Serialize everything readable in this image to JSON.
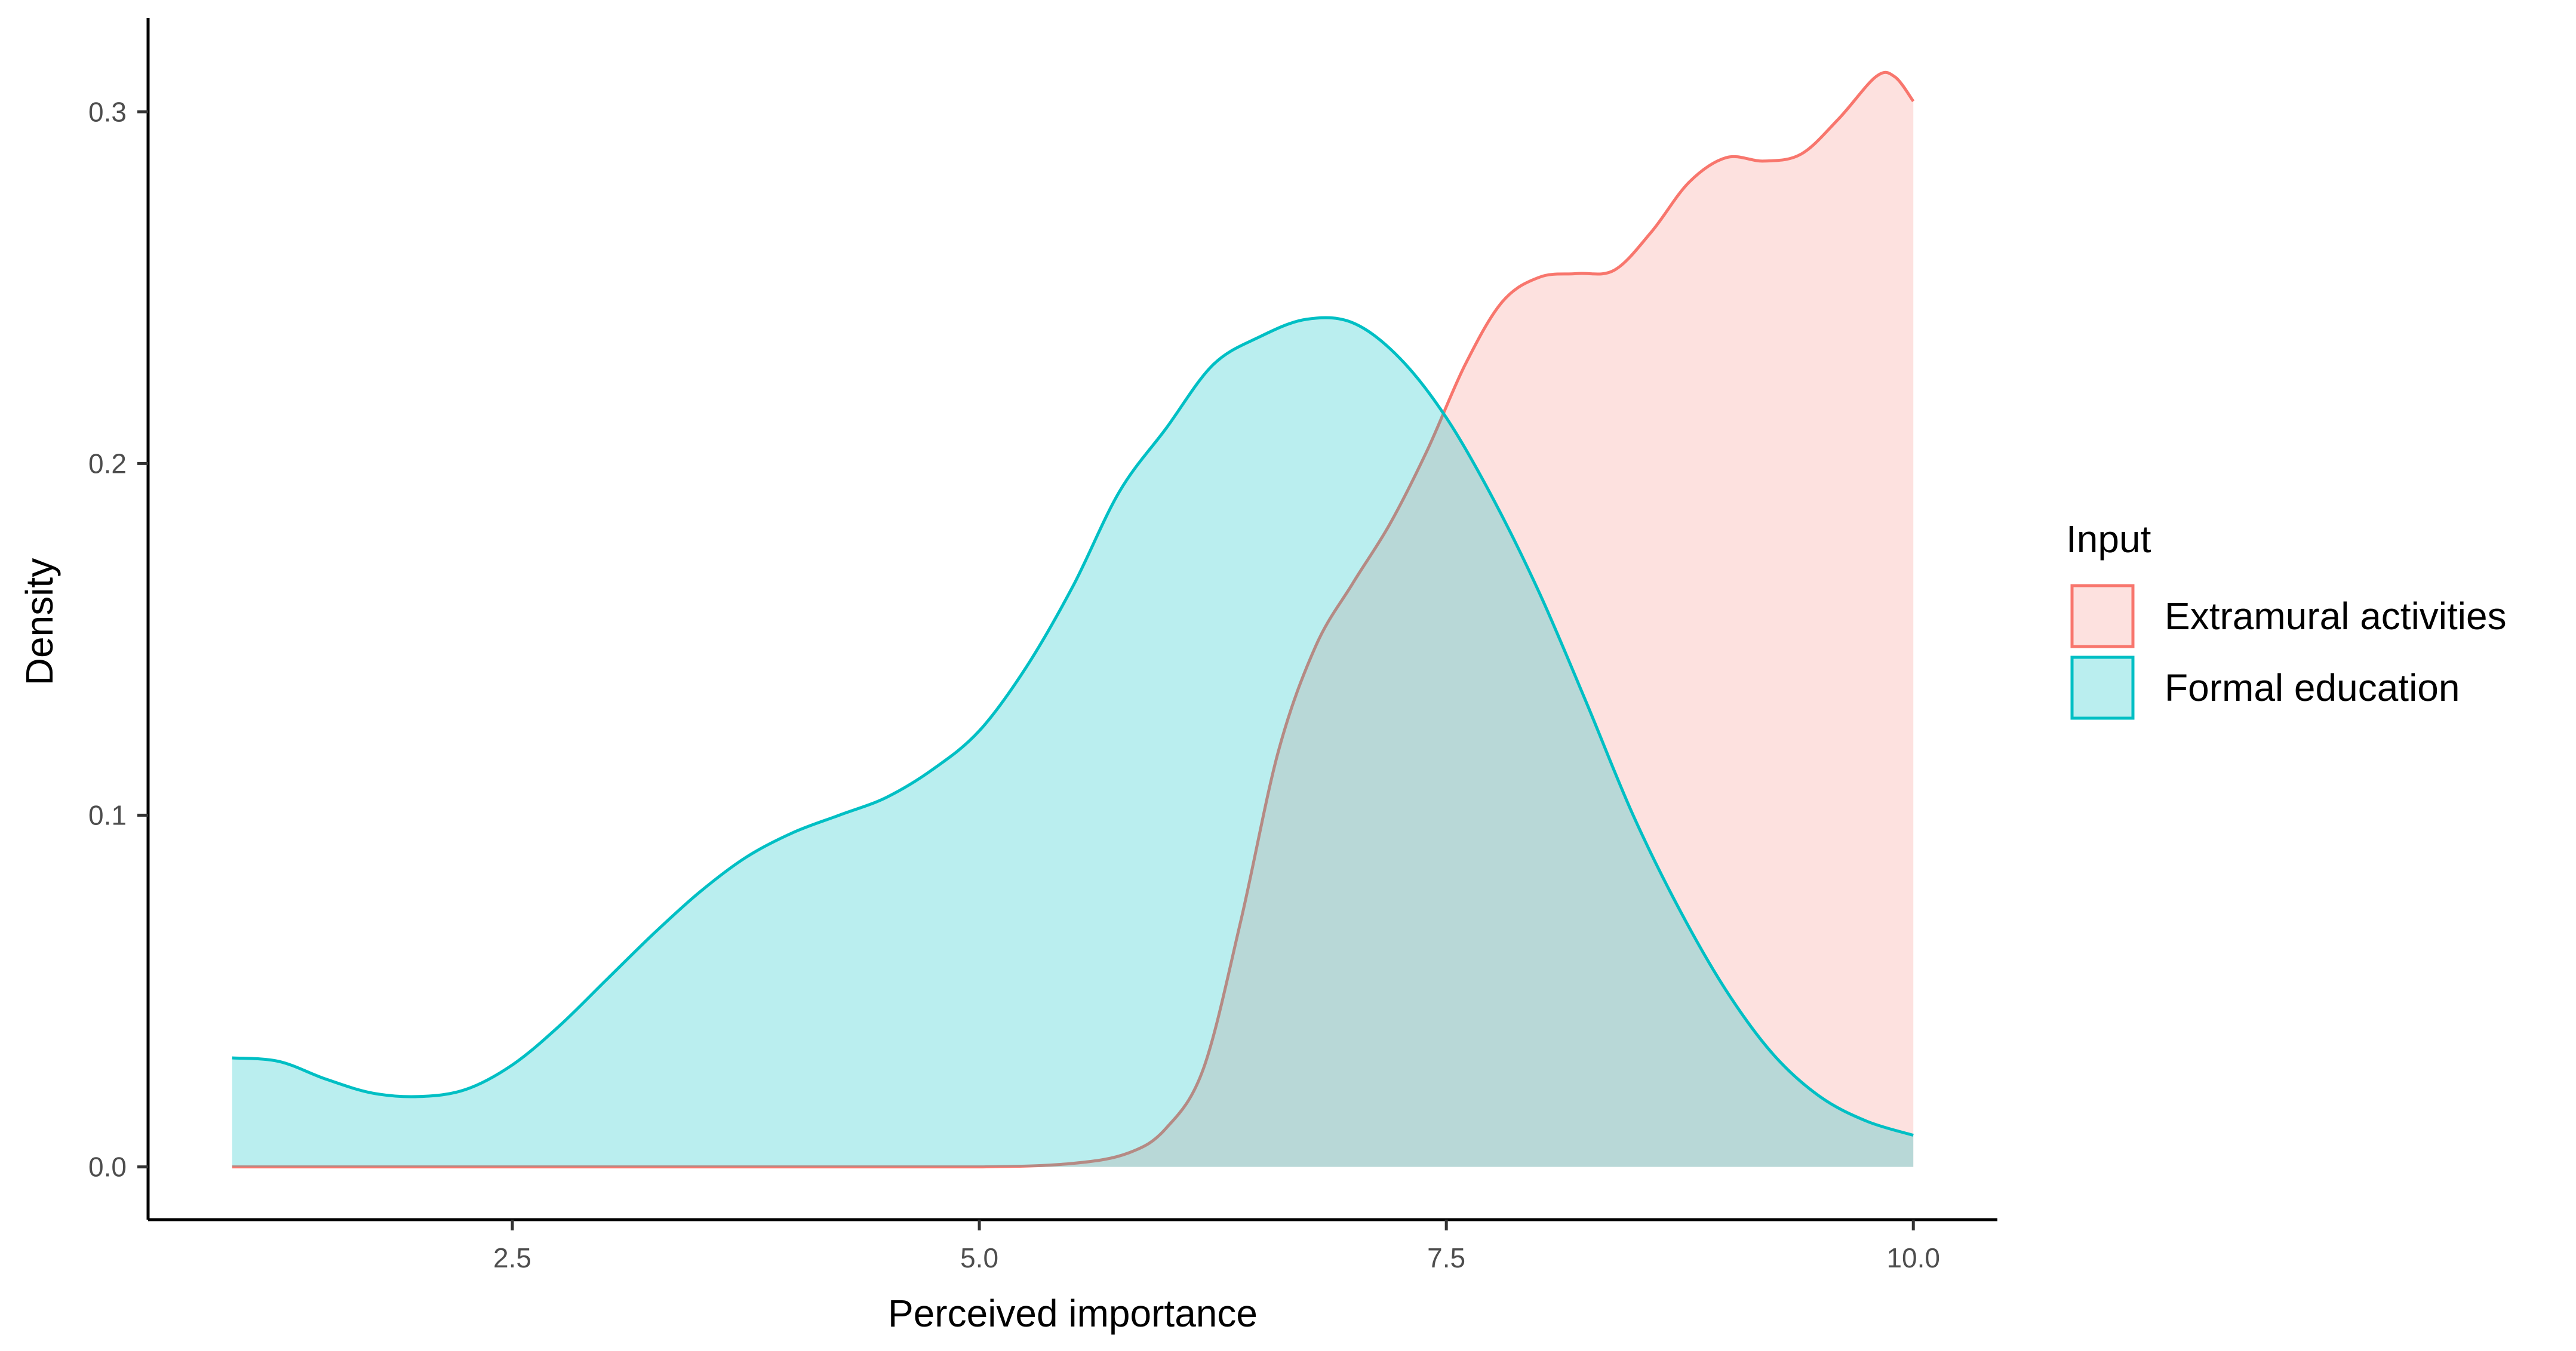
{
  "chart_data": {
    "type": "area",
    "subtype": "density",
    "title": "",
    "xlabel": "Perceived importance",
    "ylabel": "Density",
    "xlim": [
      0.55,
      10.45
    ],
    "ylim": [
      -0.015,
      0.325
    ],
    "x_ticks": [
      2.5,
      5.0,
      7.5,
      10.0
    ],
    "x_tick_labels": [
      "2.5",
      "5.0",
      "7.5",
      "10.0"
    ],
    "y_ticks": [
      0.0,
      0.1,
      0.2,
      0.3
    ],
    "y_tick_labels": [
      "0.0",
      "0.1",
      "0.2",
      "0.3"
    ],
    "grid": false,
    "legend": {
      "title": "Input",
      "placement": "right",
      "entries": [
        "Extramural activities",
        "Formal education"
      ]
    },
    "series": [
      {
        "name": "Extramural activities",
        "line_color": "#F8766D",
        "fill_color": "#F8766D",
        "fill_opacity": 0.22,
        "x": [
          1.0,
          2.0,
          3.0,
          4.0,
          5.0,
          5.5,
          5.8,
          6.0,
          6.2,
          6.4,
          6.6,
          6.8,
          7.0,
          7.2,
          7.4,
          7.6,
          7.8,
          8.0,
          8.2,
          8.4,
          8.6,
          8.8,
          9.0,
          9.2,
          9.4,
          9.6,
          9.8,
          9.9,
          10.0
        ],
        "y": [
          0.0,
          0.0,
          0.0,
          0.0,
          0.0,
          0.001,
          0.004,
          0.011,
          0.028,
          0.07,
          0.118,
          0.148,
          0.166,
          0.183,
          0.204,
          0.228,
          0.246,
          0.253,
          0.254,
          0.255,
          0.266,
          0.28,
          0.287,
          0.286,
          0.288,
          0.298,
          0.31,
          0.31,
          0.303
        ]
      },
      {
        "name": "Formal education",
        "line_color": "#00BFC4",
        "fill_color": "#00BFC4",
        "fill_opacity": 0.27,
        "x": [
          1.0,
          1.25,
          1.5,
          1.75,
          2.0,
          2.25,
          2.5,
          2.75,
          3.0,
          3.25,
          3.5,
          3.75,
          4.0,
          4.25,
          4.5,
          4.75,
          5.0,
          5.25,
          5.5,
          5.75,
          6.0,
          6.25,
          6.5,
          6.75,
          7.0,
          7.25,
          7.5,
          7.75,
          8.0,
          8.25,
          8.5,
          8.75,
          9.0,
          9.25,
          9.5,
          9.75,
          10.0
        ],
        "y": [
          0.031,
          0.03,
          0.025,
          0.021,
          0.02,
          0.022,
          0.029,
          0.04,
          0.053,
          0.066,
          0.078,
          0.088,
          0.095,
          0.1,
          0.105,
          0.113,
          0.124,
          0.142,
          0.165,
          0.192,
          0.21,
          0.228,
          0.236,
          0.241,
          0.24,
          0.23,
          0.213,
          0.19,
          0.163,
          0.132,
          0.1,
          0.073,
          0.05,
          0.032,
          0.02,
          0.013,
          0.009
        ]
      }
    ]
  }
}
